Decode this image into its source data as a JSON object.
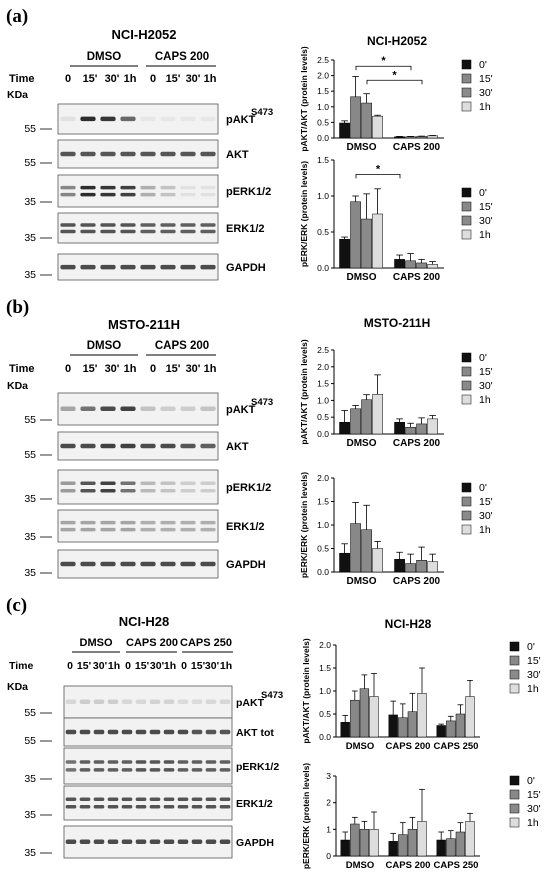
{
  "panels": [
    {
      "letter": "(a)",
      "cell_line": "NCI-H2052",
      "groups": [
        "DMSO",
        "CAPS 200"
      ],
      "time_label": "Time",
      "times": [
        "0",
        "15'",
        "30'",
        "1h",
        "0",
        "15'",
        "30'",
        "1h"
      ],
      "kda_label": "KDa",
      "blots": [
        {
          "label": "pAKT",
          "sup": "S473",
          "markers": [
            "55"
          ],
          "intensity": [
            0.05,
            0.95,
            0.9,
            0.65,
            0.02,
            0.02,
            0.02,
            0.02
          ]
        },
        {
          "label": "AKT",
          "sup": "",
          "markers": [
            "55"
          ],
          "intensity": [
            0.75,
            0.75,
            0.75,
            0.75,
            0.75,
            0.75,
            0.75,
            0.75
          ]
        },
        {
          "label": "pERK1/2",
          "sup": "",
          "markers": [
            "35"
          ],
          "intensity": [
            0.5,
            0.95,
            0.9,
            0.85,
            0.3,
            0.2,
            0.05,
            0.05
          ]
        },
        {
          "label": "ERK1/2",
          "sup": "",
          "markers": [
            "35"
          ],
          "intensity": [
            0.75,
            0.75,
            0.75,
            0.75,
            0.7,
            0.7,
            0.7,
            0.7
          ]
        },
        {
          "label": "GAPDH",
          "sup": "",
          "markers": [
            "35"
          ],
          "intensity": [
            0.8,
            0.8,
            0.8,
            0.8,
            0.8,
            0.8,
            0.8,
            0.8
          ]
        }
      ]
    },
    {
      "letter": "(b)",
      "cell_line": "MSTO-211H",
      "groups": [
        "DMSO",
        "CAPS 200"
      ],
      "time_label": "Time",
      "times": [
        "0",
        "15'",
        "30'",
        "1h",
        "0",
        "15'",
        "30'",
        "1h"
      ],
      "kda_label": "KDa",
      "blots": [
        {
          "label": "pAKT",
          "sup": "S473",
          "markers": [
            "55"
          ],
          "intensity": [
            0.35,
            0.6,
            0.8,
            0.85,
            0.2,
            0.15,
            0.15,
            0.2
          ]
        },
        {
          "label": "AKT",
          "sup": "",
          "markers": [
            "55"
          ],
          "intensity": [
            0.8,
            0.8,
            0.85,
            0.85,
            0.8,
            0.8,
            0.75,
            0.7
          ]
        },
        {
          "label": "pERK1/2",
          "sup": "",
          "markers": [
            "35"
          ],
          "intensity": [
            0.4,
            0.75,
            0.85,
            0.6,
            0.25,
            0.2,
            0.15,
            0.15
          ]
        },
        {
          "label": "ERK1/2",
          "sup": "",
          "markers": [
            "35"
          ],
          "intensity": [
            0.35,
            0.35,
            0.35,
            0.35,
            0.3,
            0.3,
            0.3,
            0.3
          ]
        },
        {
          "label": "GAPDH",
          "sup": "",
          "markers": [
            "35"
          ],
          "intensity": [
            0.8,
            0.8,
            0.8,
            0.8,
            0.8,
            0.8,
            0.8,
            0.8
          ]
        }
      ]
    },
    {
      "letter": "(c)",
      "cell_line": "NCI-H28",
      "groups": [
        "DMSO",
        "CAPS 200",
        "CAPS 250"
      ],
      "time_label": "Time",
      "times": [
        "0",
        "15'",
        "30'",
        "1h",
        "0",
        "15'",
        "30'",
        "1h",
        "0",
        "15'",
        "30'",
        "1h"
      ],
      "kda_label": "KDa",
      "blots": [
        {
          "label": "pAKT",
          "sup": "S473",
          "markers": [
            "55"
          ],
          "intensity": [
            0.1,
            0.15,
            0.15,
            0.15,
            0.1,
            0.1,
            0.12,
            0.12,
            0.08,
            0.08,
            0.1,
            0.1
          ]
        },
        {
          "label": "AKT tot",
          "sup": "",
          "markers": [
            "55"
          ],
          "intensity": [
            0.8,
            0.8,
            0.8,
            0.8,
            0.8,
            0.8,
            0.8,
            0.8,
            0.8,
            0.75,
            0.75,
            0.75
          ]
        },
        {
          "label": "pERK1/2",
          "sup": "",
          "markers": [
            "35"
          ],
          "intensity": [
            0.6,
            0.7,
            0.7,
            0.7,
            0.7,
            0.75,
            0.75,
            0.75,
            0.7,
            0.7,
            0.7,
            0.7
          ]
        },
        {
          "label": "ERK1/2",
          "sup": "",
          "markers": [
            "35"
          ],
          "intensity": [
            0.75,
            0.75,
            0.75,
            0.75,
            0.75,
            0.75,
            0.75,
            0.75,
            0.75,
            0.75,
            0.75,
            0.75
          ]
        },
        {
          "label": "GAPDH",
          "sup": "",
          "markers": [
            "35"
          ],
          "intensity": [
            0.8,
            0.8,
            0.8,
            0.8,
            0.8,
            0.8,
            0.8,
            0.8,
            0.8,
            0.8,
            0.8,
            0.8
          ]
        }
      ]
    }
  ],
  "legend_labels": [
    "0'",
    "15'",
    "30'",
    "1h"
  ],
  "series_colors": [
    "#111111",
    "#888888",
    "#8a8a8a",
    "#dddddd"
  ],
  "chart_data": [
    {
      "type": "bar",
      "title": "NCI-H2052",
      "ylabel": "pAKT/AKT (protein levels)",
      "categories": [
        "DMSO",
        "CAPS 200"
      ],
      "ylim": [
        0,
        2.5
      ],
      "yticks": [
        "0.0",
        "0.5",
        "1.0",
        "1.5",
        "2.0",
        "2.5"
      ],
      "series": [
        {
          "values": [
            0.48,
            0.04
          ],
          "errors": [
            0.07,
            0.01
          ]
        },
        {
          "values": [
            1.32,
            0.04
          ],
          "errors": [
            0.65,
            0.01
          ]
        },
        {
          "values": [
            1.12,
            0.05
          ],
          "errors": [
            0.3,
            0.01
          ]
        },
        {
          "values": [
            0.7,
            0.07
          ],
          "errors": [
            0.03,
            0.01
          ]
        }
      ],
      "significance": [
        {
          "from": [
            0,
            1
          ],
          "to": [
            1,
            1
          ],
          "y": 2.3,
          "label": "*"
        },
        {
          "from": [
            0,
            2
          ],
          "to": [
            1,
            2
          ],
          "y": 1.85,
          "label": "*"
        }
      ]
    },
    {
      "type": "bar",
      "title": "",
      "ylabel": "pERK/ERK (protein levels)",
      "categories": [
        "DMSO",
        "CAPS 200"
      ],
      "ylim": [
        0,
        1.5
      ],
      "yticks": [
        "0.0",
        "0.5",
        "1.0",
        "1.5"
      ],
      "series": [
        {
          "values": [
            0.4,
            0.12
          ],
          "errors": [
            0.03,
            0.06
          ]
        },
        {
          "values": [
            0.92,
            0.1
          ],
          "errors": [
            0.08,
            0.1
          ]
        },
        {
          "values": [
            0.68,
            0.07
          ],
          "errors": [
            0.35,
            0.05
          ]
        },
        {
          "values": [
            0.75,
            0.05
          ],
          "errors": [
            0.35,
            0.04
          ]
        }
      ],
      "significance": [
        {
          "from": [
            0,
            1
          ],
          "to": [
            1,
            0
          ],
          "y": 1.3,
          "label": "*"
        }
      ]
    },
    {
      "type": "bar",
      "title": "MSTO-211H",
      "ylabel": "pAKT/AKT (protein levels)",
      "categories": [
        "DMSO",
        "CAPS 200"
      ],
      "ylim": [
        0,
        2.5
      ],
      "yticks": [
        "0.0",
        "0.5",
        "1.0",
        "1.5",
        "2.0",
        "2.5"
      ],
      "series": [
        {
          "values": [
            0.35,
            0.35
          ],
          "errors": [
            0.35,
            0.1
          ]
        },
        {
          "values": [
            0.75,
            0.2
          ],
          "errors": [
            0.1,
            0.12
          ]
        },
        {
          "values": [
            1.02,
            0.3
          ],
          "errors": [
            0.15,
            0.18
          ]
        },
        {
          "values": [
            1.18,
            0.45
          ],
          "errors": [
            0.58,
            0.1
          ]
        }
      ],
      "significance": []
    },
    {
      "type": "bar",
      "title": "",
      "ylabel": "pERK/ERK (protein levels)",
      "categories": [
        "DMSO",
        "CAPS 200"
      ],
      "ylim": [
        0,
        2.0
      ],
      "yticks": [
        "0.0",
        "0.5",
        "1.0",
        "1.5",
        "2.0"
      ],
      "series": [
        {
          "values": [
            0.4,
            0.27
          ],
          "errors": [
            0.2,
            0.15
          ]
        },
        {
          "values": [
            1.03,
            0.18
          ],
          "errors": [
            0.45,
            0.2
          ]
        },
        {
          "values": [
            0.9,
            0.25
          ],
          "errors": [
            0.52,
            0.28
          ]
        },
        {
          "values": [
            0.5,
            0.22
          ],
          "errors": [
            0.15,
            0.16
          ]
        }
      ],
      "significance": []
    },
    {
      "type": "bar",
      "title": "NCI-H28",
      "ylabel": "pAKT/AKT (protein levels)",
      "categories": [
        "DMSO",
        "CAPS 200",
        "CAPS 250"
      ],
      "ylim": [
        0,
        2.0
      ],
      "yticks": [
        "0.0",
        "0.5",
        "1.0",
        "1.5",
        "2.0"
      ],
      "series": [
        {
          "values": [
            0.32,
            0.48,
            0.25
          ],
          "errors": [
            0.15,
            0.3,
            0.03
          ]
        },
        {
          "values": [
            0.8,
            0.42,
            0.35
          ],
          "errors": [
            0.2,
            0.3,
            0.1
          ]
        },
        {
          "values": [
            1.05,
            0.55,
            0.5
          ],
          "errors": [
            0.3,
            0.4,
            0.2
          ]
        },
        {
          "values": [
            0.88,
            0.95,
            0.88
          ],
          "errors": [
            0.5,
            0.55,
            0.35
          ]
        }
      ],
      "significance": []
    },
    {
      "type": "bar",
      "title": "",
      "ylabel": "pERK/ERK (protein levels)",
      "categories": [
        "DMSO",
        "CAPS 200",
        "CAPS 250"
      ],
      "ylim": [
        0,
        3
      ],
      "yticks": [
        "0",
        "1",
        "2",
        "3"
      ],
      "series": [
        {
          "values": [
            0.6,
            0.55,
            0.6
          ],
          "errors": [
            0.3,
            0.3,
            0.3
          ]
        },
        {
          "values": [
            1.2,
            0.8,
            0.65
          ],
          "errors": [
            0.25,
            0.45,
            0.3
          ]
        },
        {
          "values": [
            1.0,
            1.0,
            0.9
          ],
          "errors": [
            0.3,
            0.45,
            0.35
          ]
        },
        {
          "values": [
            1.0,
            1.3,
            1.3
          ],
          "errors": [
            0.65,
            1.2,
            0.3
          ]
        }
      ],
      "significance": []
    }
  ]
}
